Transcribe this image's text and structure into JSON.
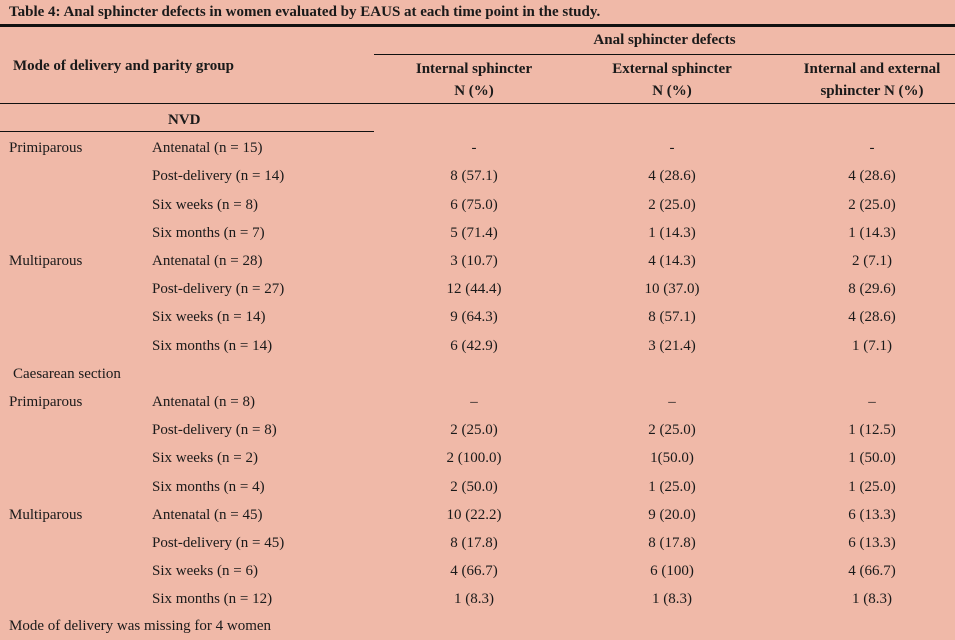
{
  "title": "Table 4: Anal sphincter defects in women evaluated by EAUS at each time point in the study.",
  "header": {
    "row_group": "Mode of delivery and parity group",
    "span": "Anal sphincter defects",
    "col1_line1": "Internal sphincter",
    "col1_line2": "N (%)",
    "col2_line1": "External sphincter",
    "col2_line2": "N (%)",
    "col3_line1": "Internal and external",
    "col3_line2": "sphincter N (%)"
  },
  "sections": [
    {
      "label": "NVD",
      "groups": [
        {
          "parity": "Primiparous",
          "rows": [
            {
              "time": "Antenatal (n = 15)",
              "internal": "-",
              "external": "-",
              "both": "-"
            },
            {
              "time": "Post-delivery (n = 14)",
              "internal": "8 (57.1)",
              "external": "4 (28.6)",
              "both": "4 (28.6)"
            },
            {
              "time": "Six weeks (n = 8)",
              "internal": "6 (75.0)",
              "external": "2 (25.0)",
              "both": "2 (25.0)"
            },
            {
              "time": "Six months (n = 7)",
              "internal": "5 (71.4)",
              "external": "1 (14.3)",
              "both": "1 (14.3)"
            }
          ]
        },
        {
          "parity": "Multiparous",
          "rows": [
            {
              "time": "Antenatal (n = 28)",
              "internal": "3 (10.7)",
              "external": "4 (14.3)",
              "both": "2 (7.1)"
            },
            {
              "time": "Post-delivery (n = 27)",
              "internal": "12 (44.4)",
              "external": "10 (37.0)",
              "both": "8 (29.6)"
            },
            {
              "time": "Six weeks (n = 14)",
              "internal": "9 (64.3)",
              "external": "8 (57.1)",
              "both": "4 (28.6)"
            },
            {
              "time": "Six months (n = 14)",
              "internal": "6 (42.9)",
              "external": "3 (21.4)",
              "both": "1 (7.1)"
            }
          ]
        }
      ]
    },
    {
      "label": "Caesarean section",
      "groups": [
        {
          "parity": "Primiparous",
          "rows": [
            {
              "time": "Antenatal (n = 8)",
              "internal": "–",
              "external": "–",
              "both": "–"
            },
            {
              "time": "Post-delivery (n = 8)",
              "internal": "2 (25.0)",
              "external": "2 (25.0)",
              "both": "1 (12.5)"
            },
            {
              "time": "Six weeks (n = 2)",
              "internal": "2 (100.0)",
              "external": "1(50.0)",
              "both": "1 (50.0)"
            },
            {
              "time": "Six months (n = 4)",
              "internal": "2 (50.0)",
              "external": "1 (25.0)",
              "both": "1 (25.0)"
            }
          ]
        },
        {
          "parity": "Multiparous",
          "rows": [
            {
              "time": "Antenatal (n = 45)",
              "internal": "10 (22.2)",
              "external": "9 (20.0)",
              "both": "6 (13.3)"
            },
            {
              "time": "Post-delivery (n = 45)",
              "internal": "8 (17.8)",
              "external": "8 (17.8)",
              "both": "6 (13.3)"
            },
            {
              "time": "Six weeks (n = 6)",
              "internal": "4 (66.7)",
              "external": "6 (100)",
              "both": "4 (66.7)"
            },
            {
              "time": "Six months (n = 12)",
              "internal": "1 (8.3)",
              "external": "1 (8.3)",
              "both": "1 (8.3)"
            }
          ]
        }
      ]
    }
  ],
  "footnote": "Mode of delivery was missing for 4 women"
}
